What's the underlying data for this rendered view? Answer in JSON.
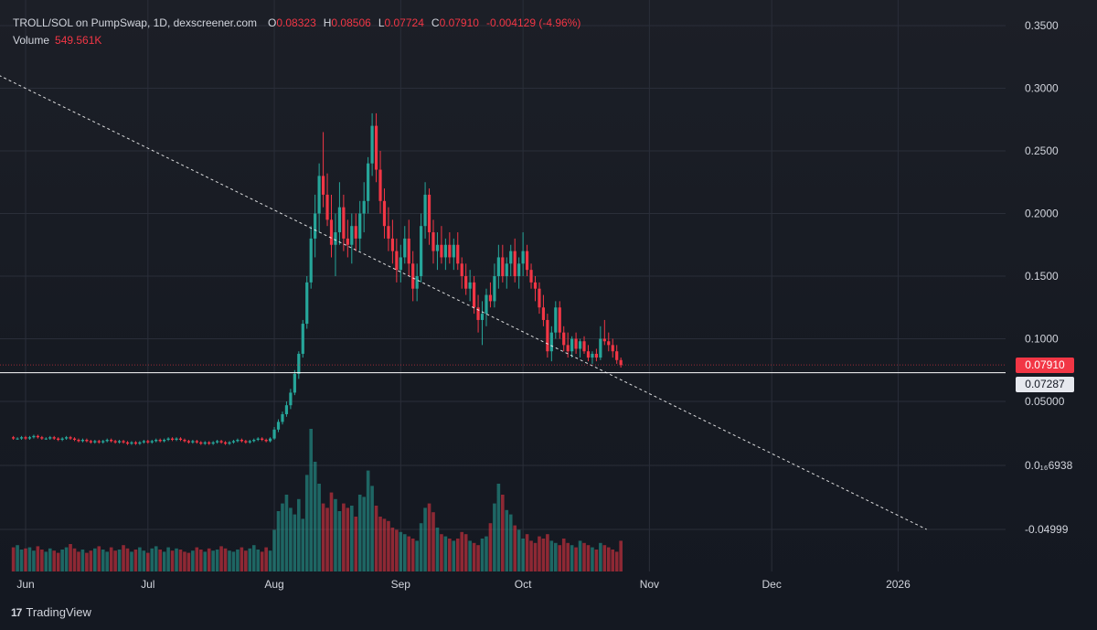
{
  "legend": {
    "symbol": "TROLL/SOL on PumpSwap, 1D, dexscreener.com",
    "open_label": "O",
    "open": "0.08323",
    "high_label": "H",
    "high": "0.08506",
    "low_label": "L",
    "low": "0.07724",
    "close_label": "C",
    "close": "0.07910",
    "change": "-0.004129 (-4.96%)",
    "volume_label": "Volume",
    "volume": "549.561K"
  },
  "price_tags": {
    "last": "0.07910",
    "line": "0.07287"
  },
  "brand": {
    "logo": "17",
    "name": "TradingView"
  },
  "colors": {
    "up": "#26a69a",
    "down": "#f23645",
    "background": "#1c1f27",
    "text": "#d1d4dc",
    "trendline": "#ffffff",
    "hline": "#ffffff"
  },
  "chart_data": {
    "type": "candlestick",
    "title": "TROLL/SOL on PumpSwap, 1D, dexscreener.com",
    "timeframe": "1D",
    "y_axis": {
      "scale": "custom (compressed below 0.05)",
      "tick_labels": [
        "0.3500",
        "0.3000",
        "0.2500",
        "0.2000",
        "0.1500",
        "0.1000",
        "0.05000",
        "0.0₁₆6938",
        "-0.04999"
      ],
      "tick_values": [
        0.35,
        0.3,
        0.25,
        0.2,
        0.15,
        0.1,
        0.05,
        0.0,
        -0.04999
      ]
    },
    "x_axis": {
      "tick_labels": [
        "Jun",
        "Jul",
        "Aug",
        "Sep",
        "Oct",
        "Nov",
        "Dec",
        "2026"
      ],
      "tick_dates": [
        "2025-06-01",
        "2025-07-01",
        "2025-08-01",
        "2025-09-01",
        "2025-10-01",
        "2025-11-01",
        "2025-12-01",
        "2026-01-01"
      ]
    },
    "start_date": "2025-05-29",
    "ohlc": [
      [
        0.022,
        0.023,
        0.02,
        0.021
      ],
      [
        0.021,
        0.022,
        0.02,
        0.021
      ],
      [
        0.021,
        0.023,
        0.02,
        0.022
      ],
      [
        0.022,
        0.023,
        0.02,
        0.021
      ],
      [
        0.021,
        0.023,
        0.02,
        0.022
      ],
      [
        0.022,
        0.024,
        0.021,
        0.023
      ],
      [
        0.023,
        0.024,
        0.021,
        0.022
      ],
      [
        0.022,
        0.023,
        0.02,
        0.021
      ],
      [
        0.021,
        0.022,
        0.02,
        0.021
      ],
      [
        0.021,
        0.023,
        0.02,
        0.022
      ],
      [
        0.022,
        0.023,
        0.02,
        0.021
      ],
      [
        0.021,
        0.022,
        0.019,
        0.02
      ],
      [
        0.02,
        0.022,
        0.019,
        0.021
      ],
      [
        0.021,
        0.023,
        0.02,
        0.022
      ],
      [
        0.022,
        0.023,
        0.02,
        0.021
      ],
      [
        0.021,
        0.022,
        0.019,
        0.02
      ],
      [
        0.02,
        0.021,
        0.018,
        0.019
      ],
      [
        0.019,
        0.021,
        0.018,
        0.02
      ],
      [
        0.02,
        0.021,
        0.018,
        0.019
      ],
      [
        0.019,
        0.02,
        0.017,
        0.018
      ],
      [
        0.018,
        0.02,
        0.017,
        0.019
      ],
      [
        0.019,
        0.02,
        0.017,
        0.018
      ],
      [
        0.018,
        0.02,
        0.017,
        0.019
      ],
      [
        0.019,
        0.021,
        0.018,
        0.02
      ],
      [
        0.02,
        0.021,
        0.018,
        0.019
      ],
      [
        0.019,
        0.02,
        0.017,
        0.018
      ],
      [
        0.018,
        0.02,
        0.017,
        0.019
      ],
      [
        0.019,
        0.02,
        0.017,
        0.018
      ],
      [
        0.018,
        0.019,
        0.016,
        0.017
      ],
      [
        0.017,
        0.019,
        0.016,
        0.018
      ],
      [
        0.018,
        0.019,
        0.016,
        0.017
      ],
      [
        0.017,
        0.019,
        0.016,
        0.018
      ],
      [
        0.018,
        0.02,
        0.017,
        0.019
      ],
      [
        0.019,
        0.02,
        0.017,
        0.018
      ],
      [
        0.018,
        0.02,
        0.017,
        0.019
      ],
      [
        0.019,
        0.021,
        0.018,
        0.02
      ],
      [
        0.02,
        0.021,
        0.018,
        0.019
      ],
      [
        0.019,
        0.021,
        0.018,
        0.02
      ],
      [
        0.02,
        0.022,
        0.019,
        0.021
      ],
      [
        0.021,
        0.022,
        0.019,
        0.02
      ],
      [
        0.02,
        0.022,
        0.019,
        0.021
      ],
      [
        0.021,
        0.022,
        0.019,
        0.02
      ],
      [
        0.02,
        0.021,
        0.018,
        0.019
      ],
      [
        0.019,
        0.02,
        0.017,
        0.018
      ],
      [
        0.018,
        0.02,
        0.017,
        0.019
      ],
      [
        0.019,
        0.02,
        0.017,
        0.018
      ],
      [
        0.018,
        0.019,
        0.016,
        0.017
      ],
      [
        0.017,
        0.019,
        0.016,
        0.018
      ],
      [
        0.018,
        0.019,
        0.016,
        0.017
      ],
      [
        0.017,
        0.019,
        0.016,
        0.018
      ],
      [
        0.018,
        0.02,
        0.017,
        0.019
      ],
      [
        0.019,
        0.02,
        0.017,
        0.018
      ],
      [
        0.018,
        0.019,
        0.016,
        0.017
      ],
      [
        0.017,
        0.019,
        0.016,
        0.018
      ],
      [
        0.018,
        0.02,
        0.017,
        0.019
      ],
      [
        0.019,
        0.021,
        0.018,
        0.02
      ],
      [
        0.02,
        0.021,
        0.018,
        0.019
      ],
      [
        0.019,
        0.02,
        0.017,
        0.018
      ],
      [
        0.018,
        0.02,
        0.017,
        0.019
      ],
      [
        0.019,
        0.021,
        0.018,
        0.02
      ],
      [
        0.02,
        0.022,
        0.019,
        0.021
      ],
      [
        0.021,
        0.022,
        0.019,
        0.02
      ],
      [
        0.02,
        0.021,
        0.018,
        0.019
      ],
      [
        0.019,
        0.022,
        0.018,
        0.021
      ],
      [
        0.021,
        0.03,
        0.02,
        0.028
      ],
      [
        0.028,
        0.036,
        0.026,
        0.034
      ],
      [
        0.034,
        0.042,
        0.032,
        0.04
      ],
      [
        0.04,
        0.05,
        0.038,
        0.047
      ],
      [
        0.047,
        0.06,
        0.044,
        0.057
      ],
      [
        0.057,
        0.075,
        0.055,
        0.072
      ],
      [
        0.072,
        0.09,
        0.068,
        0.088
      ],
      [
        0.088,
        0.115,
        0.085,
        0.112
      ],
      [
        0.112,
        0.15,
        0.108,
        0.145
      ],
      [
        0.145,
        0.19,
        0.14,
        0.18
      ],
      [
        0.18,
        0.215,
        0.165,
        0.2
      ],
      [
        0.2,
        0.24,
        0.185,
        0.23
      ],
      [
        0.23,
        0.265,
        0.205,
        0.215
      ],
      [
        0.215,
        0.232,
        0.19,
        0.195
      ],
      [
        0.195,
        0.215,
        0.165,
        0.175
      ],
      [
        0.175,
        0.2,
        0.15,
        0.185
      ],
      [
        0.185,
        0.225,
        0.175,
        0.205
      ],
      [
        0.205,
        0.215,
        0.17,
        0.18
      ],
      [
        0.18,
        0.195,
        0.165,
        0.175
      ],
      [
        0.175,
        0.2,
        0.16,
        0.19
      ],
      [
        0.19,
        0.2,
        0.17,
        0.18
      ],
      [
        0.18,
        0.21,
        0.17,
        0.2
      ],
      [
        0.2,
        0.225,
        0.185,
        0.21
      ],
      [
        0.21,
        0.245,
        0.2,
        0.24
      ],
      [
        0.24,
        0.28,
        0.23,
        0.27
      ],
      [
        0.27,
        0.28,
        0.225,
        0.235
      ],
      [
        0.235,
        0.25,
        0.2,
        0.21
      ],
      [
        0.21,
        0.22,
        0.18,
        0.19
      ],
      [
        0.19,
        0.205,
        0.17,
        0.18
      ],
      [
        0.18,
        0.195,
        0.16,
        0.17
      ],
      [
        0.17,
        0.18,
        0.145,
        0.155
      ],
      [
        0.155,
        0.175,
        0.145,
        0.165
      ],
      [
        0.165,
        0.19,
        0.16,
        0.18
      ],
      [
        0.18,
        0.195,
        0.15,
        0.16
      ],
      [
        0.16,
        0.17,
        0.13,
        0.14
      ],
      [
        0.14,
        0.16,
        0.13,
        0.15
      ],
      [
        0.15,
        0.2,
        0.145,
        0.19
      ],
      [
        0.19,
        0.225,
        0.18,
        0.215
      ],
      [
        0.215,
        0.22,
        0.175,
        0.185
      ],
      [
        0.185,
        0.195,
        0.16,
        0.17
      ],
      [
        0.17,
        0.185,
        0.155,
        0.175
      ],
      [
        0.175,
        0.19,
        0.16,
        0.165
      ],
      [
        0.165,
        0.18,
        0.155,
        0.175
      ],
      [
        0.175,
        0.185,
        0.16,
        0.165
      ],
      [
        0.165,
        0.18,
        0.155,
        0.175
      ],
      [
        0.175,
        0.185,
        0.155,
        0.16
      ],
      [
        0.16,
        0.165,
        0.14,
        0.15
      ],
      [
        0.15,
        0.16,
        0.135,
        0.14
      ],
      [
        0.14,
        0.155,
        0.13,
        0.145
      ],
      [
        0.145,
        0.15,
        0.12,
        0.125
      ],
      [
        0.125,
        0.135,
        0.105,
        0.115
      ],
      [
        0.115,
        0.13,
        0.095,
        0.12
      ],
      [
        0.12,
        0.14,
        0.11,
        0.135
      ],
      [
        0.135,
        0.145,
        0.125,
        0.13
      ],
      [
        0.13,
        0.16,
        0.125,
        0.15
      ],
      [
        0.15,
        0.175,
        0.14,
        0.165
      ],
      [
        0.165,
        0.175,
        0.145,
        0.15
      ],
      [
        0.15,
        0.165,
        0.14,
        0.16
      ],
      [
        0.16,
        0.175,
        0.15,
        0.17
      ],
      [
        0.17,
        0.18,
        0.145,
        0.15
      ],
      [
        0.15,
        0.165,
        0.14,
        0.16
      ],
      [
        0.16,
        0.185,
        0.15,
        0.17
      ],
      [
        0.17,
        0.175,
        0.15,
        0.155
      ],
      [
        0.155,
        0.16,
        0.14,
        0.145
      ],
      [
        0.145,
        0.15,
        0.13,
        0.14
      ],
      [
        0.14,
        0.145,
        0.12,
        0.125
      ],
      [
        0.125,
        0.135,
        0.11,
        0.115
      ],
      [
        0.115,
        0.12,
        0.085,
        0.09
      ],
      [
        0.09,
        0.11,
        0.082,
        0.105
      ],
      [
        0.105,
        0.13,
        0.1,
        0.125
      ],
      [
        0.125,
        0.13,
        0.1,
        0.105
      ],
      [
        0.105,
        0.11,
        0.09,
        0.095
      ],
      [
        0.095,
        0.105,
        0.085,
        0.09
      ],
      [
        0.09,
        0.102,
        0.085,
        0.1
      ],
      [
        0.1,
        0.105,
        0.088,
        0.092
      ],
      [
        0.092,
        0.1,
        0.085,
        0.098
      ],
      [
        0.098,
        0.102,
        0.088,
        0.09
      ],
      [
        0.09,
        0.095,
        0.082,
        0.085
      ],
      [
        0.085,
        0.09,
        0.08,
        0.088
      ],
      [
        0.088,
        0.092,
        0.082,
        0.085
      ],
      [
        0.085,
        0.11,
        0.083,
        0.1
      ],
      [
        0.1,
        0.115,
        0.095,
        0.098
      ],
      [
        0.098,
        0.105,
        0.09,
        0.095
      ],
      [
        0.095,
        0.1,
        0.085,
        0.09
      ],
      [
        0.09,
        0.095,
        0.08,
        0.083
      ],
      [
        0.083,
        0.085,
        0.077,
        0.079
      ]
    ],
    "volume": [
      22,
      24,
      20,
      21,
      22,
      19,
      23,
      20,
      18,
      21,
      19,
      17,
      20,
      22,
      25,
      21,
      18,
      20,
      17,
      19,
      21,
      23,
      20,
      18,
      22,
      19,
      20,
      24,
      21,
      18,
      20,
      22,
      19,
      17,
      21,
      23,
      20,
      18,
      22,
      19,
      21,
      20,
      18,
      17,
      19,
      22,
      20,
      18,
      21,
      19,
      20,
      23,
      21,
      19,
      18,
      20,
      22,
      19,
      21,
      24,
      20,
      18,
      22,
      19,
      38,
      55,
      62,
      70,
      58,
      52,
      66,
      48,
      88,
      130,
      100,
      80,
      62,
      58,
      72,
      66,
      55,
      62,
      58,
      60,
      50,
      70,
      68,
      92,
      78,
      60,
      50,
      48,
      46,
      40,
      38,
      36,
      34,
      32,
      30,
      28,
      44,
      58,
      62,
      54,
      40,
      34,
      32,
      30,
      28,
      30,
      36,
      34,
      28,
      26,
      24,
      30,
      32,
      44,
      62,
      80,
      70,
      56,
      52,
      42,
      38,
      30,
      34,
      28,
      26,
      32,
      30,
      34,
      28,
      26,
      24,
      30,
      26,
      24,
      22,
      28,
      26,
      24,
      22,
      20,
      26,
      24,
      22,
      20,
      18,
      28
    ],
    "last_close": 0.0791,
    "horizontal_line": 0.07287,
    "trendline": {
      "from": {
        "date": "2025-04-18",
        "price": 0.37
      },
      "to": {
        "date": "2026-01-08",
        "price": -0.05
      }
    }
  }
}
